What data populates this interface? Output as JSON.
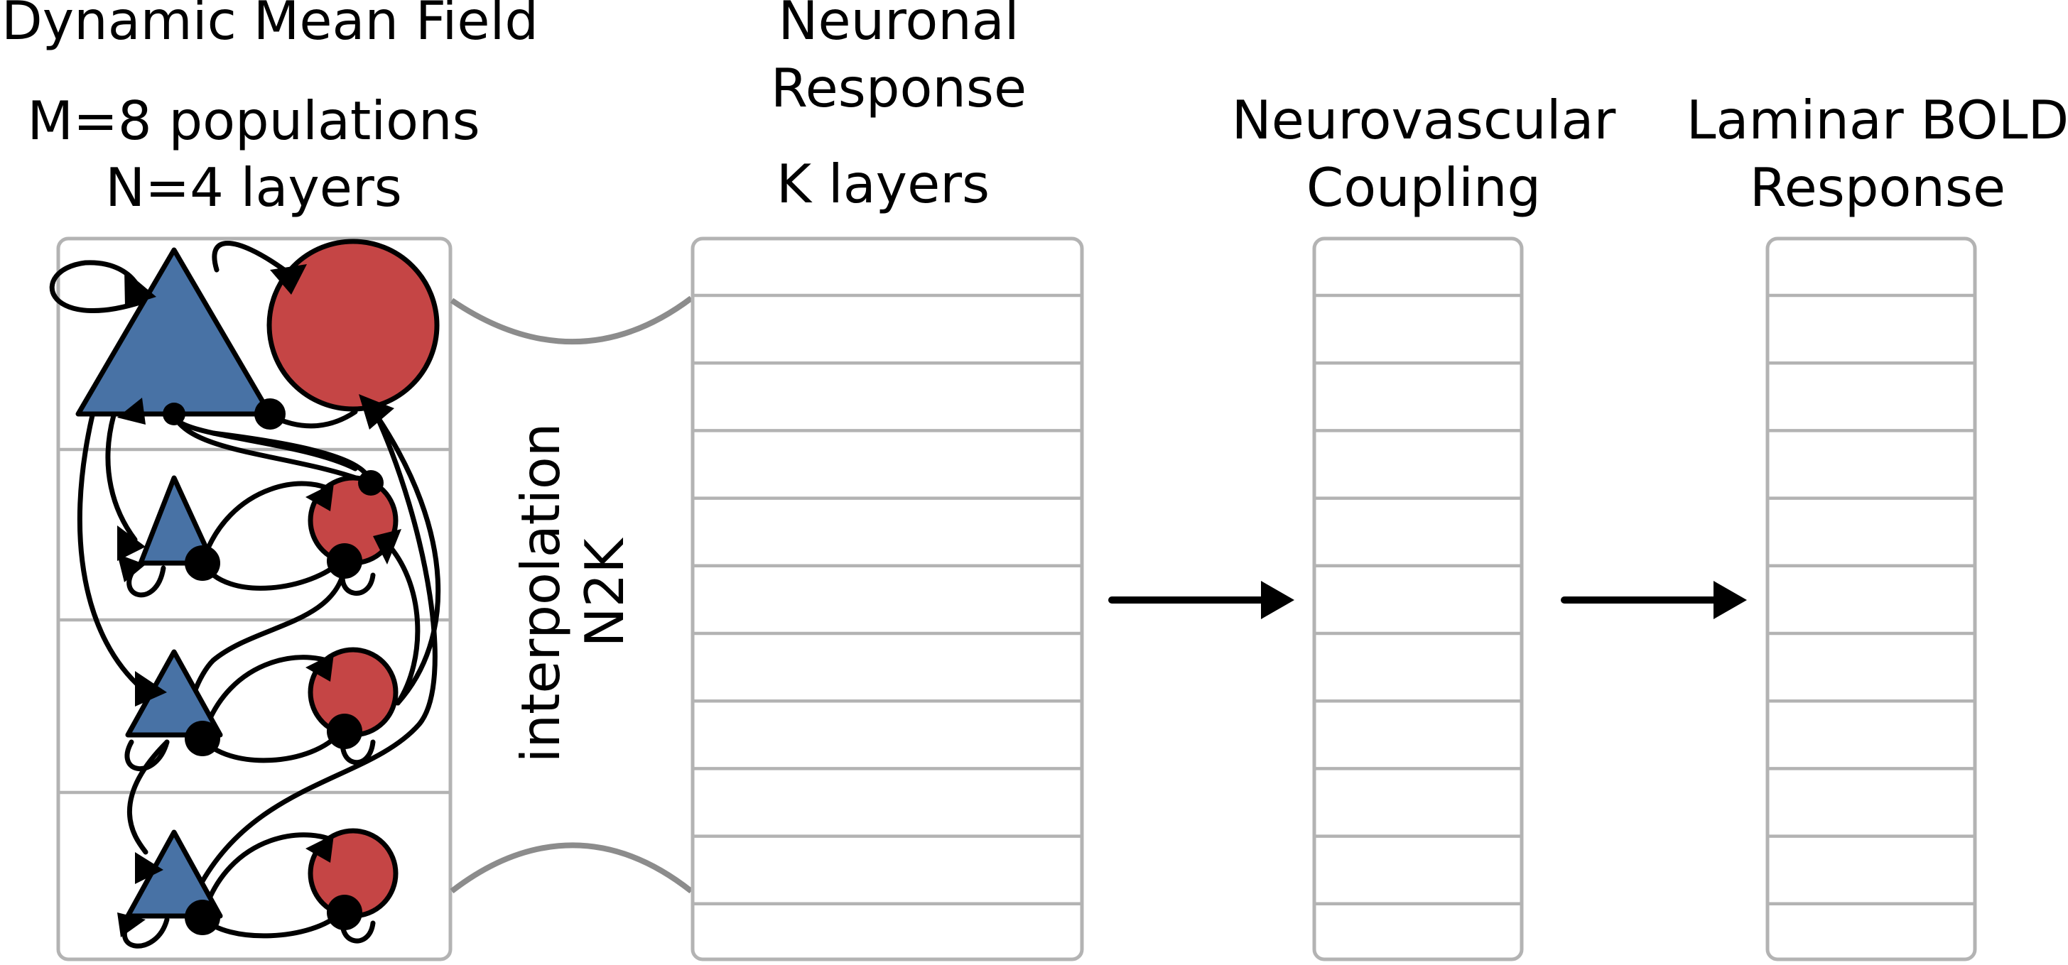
{
  "titles": {
    "dmf_line1": "Dynamic Mean Field",
    "dmf_line2": "M=8 populations",
    "dmf_line3": "N=4 layers",
    "neuronal_line1": "Neuronal",
    "neuronal_line2": "Response",
    "neuronal_line3": "K layers",
    "nvc_line1": "Neurovascular",
    "nvc_line2": "Coupling",
    "bold_line1": "Laminar BOLD",
    "bold_line2": "Response"
  },
  "interpolation": {
    "line1": "interpolation",
    "line2": "N2K"
  },
  "colors": {
    "excitatory": "#4872a5",
    "inhibitory": "#c54545",
    "box_stroke": "#b3b3b3",
    "connector": "#8c8c8c"
  }
}
